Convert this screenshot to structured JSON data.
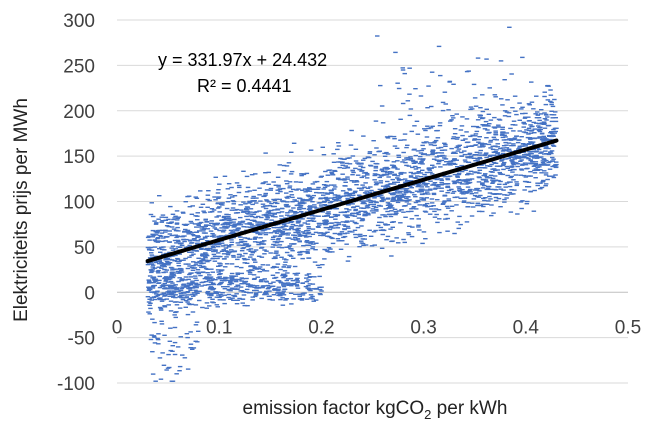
{
  "chart_data": {
    "type": "scatter",
    "title": "",
    "xlabel": "emission factor kgCO",
    "xlabel_sub": "2",
    "xlabel_suffix": " per kWh",
    "ylabel": "Elektriciteits prijs per MWh",
    "xlim": [
      0,
      0.5
    ],
    "ylim": [
      -100,
      300
    ],
    "x_ticks": [
      "0",
      "0.1",
      "0.2",
      "0.3",
      "0.4",
      "0.5"
    ],
    "y_ticks": [
      "300",
      "250",
      "200",
      "150",
      "100",
      "50",
      "0",
      "-50",
      "-100"
    ],
    "grid": "horizontal",
    "marker_color": "#4472C4",
    "trendline": {
      "type": "linear",
      "slope": 331.97,
      "intercept": 24.432,
      "x_range": [
        0.03,
        0.43
      ],
      "color": "#000000",
      "equation_text": "y = 331.97x + 24.432",
      "r2_text": "R² = 0.4441"
    },
    "point_clusters": [
      {
        "x_range": [
          0.03,
          0.43
        ],
        "noise": 28,
        "count": 3000
      },
      {
        "x_range": [
          0.03,
          0.2
        ],
        "y_center": 5,
        "noise": 10,
        "count": 450
      },
      {
        "x_range": [
          0.03,
          0.08
        ],
        "y_center": -45,
        "noise": 30,
        "count": 70
      },
      {
        "x_range": [
          0.25,
          0.43
        ],
        "y_center": 210,
        "noise": 30,
        "count": 80
      }
    ]
  }
}
